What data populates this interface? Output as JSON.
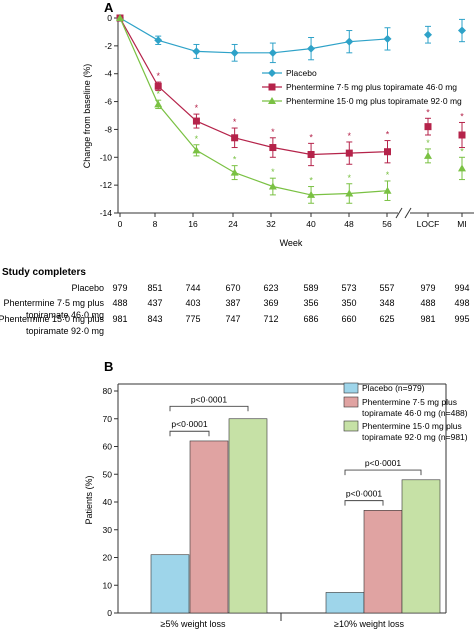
{
  "panel_a": {
    "letter": "A",
    "ylabel": "Change from baseline (%)",
    "xlabel": "Week",
    "yticks": [
      0,
      -2,
      -4,
      -6,
      -8,
      -10,
      -12,
      -14
    ],
    "xticks": [
      "0",
      "8",
      "16",
      "24",
      "32",
      "40",
      "48",
      "56",
      "LOCF",
      "MI"
    ],
    "legend": [
      "Placebo",
      "Phentermine 7·5 mg plus topiramate 46·0 mg",
      "Phentermine 15·0 mg plus topiramate 92·0 mg"
    ],
    "significance_marker": "*"
  },
  "completers": {
    "heading": "Study completers",
    "rows": [
      {
        "label": "Placebo",
        "label2": "",
        "values": [
          "979",
          "851",
          "744",
          "670",
          "623",
          "589",
          "573",
          "557",
          "979",
          "994"
        ]
      },
      {
        "label": "Phentermine 7·5 mg plus",
        "label2": "topiramate 46·0 mg",
        "values": [
          "488",
          "437",
          "403",
          "387",
          "369",
          "356",
          "350",
          "348",
          "488",
          "498"
        ]
      },
      {
        "label": "Phentermine 15·0 mg plus",
        "label2": "topiramate 92·0 mg",
        "values": [
          "981",
          "843",
          "775",
          "747",
          "712",
          "686",
          "660",
          "625",
          "981",
          "995"
        ]
      }
    ]
  },
  "panel_b": {
    "letter": "B",
    "ylabel": "Patients (%)",
    "yticks": [
      0,
      10,
      20,
      30,
      40,
      50,
      60,
      70,
      80
    ],
    "categories": [
      "≥5% weight loss",
      "≥10% weight loss"
    ],
    "legend": [
      {
        "line1": "Placebo (n=979)",
        "line2": ""
      },
      {
        "line1": "Phentermine 7·5 mg plus",
        "line2": "topiramate 46·0 mg (n=488)"
      },
      {
        "line1": "Phentermine 15·0 mg plus",
        "line2": "topiramate 92·0 mg (n=981)"
      }
    ],
    "pvalue_label": "p<0·0001"
  },
  "colors": {
    "placebo": "#2ea2c8",
    "mid": "#b5234a",
    "high": "#7ac143",
    "bar_placebo": "#9ed5ea",
    "bar_mid": "#e0a3a2",
    "bar_high": "#c6e1a6",
    "axis": "#333333"
  },
  "chart_data": [
    {
      "type": "line",
      "xlabel": "Week",
      "ylabel": "Change from baseline (%)",
      "ylim": [
        -14,
        0
      ],
      "x": [
        0,
        8,
        16,
        24,
        32,
        40,
        48,
        56
      ],
      "extra_x": [
        "LOCF",
        "MI"
      ],
      "series": [
        {
          "name": "Placebo",
          "values": [
            0,
            -1.6,
            -2.4,
            -2.5,
            -2.5,
            -2.2,
            -1.7,
            -1.5
          ],
          "errors": [
            0,
            0.3,
            0.5,
            0.6,
            0.7,
            0.8,
            0.8,
            0.8
          ],
          "extra_values": [
            -1.2,
            -0.9
          ],
          "extra_errors": [
            0.6,
            0.8
          ],
          "significant": [
            false,
            false,
            false,
            false,
            false,
            false,
            false,
            false
          ]
        },
        {
          "name": "Phentermine 7·5 mg plus topiramate 46·0 mg",
          "values": [
            0,
            -4.9,
            -7.4,
            -8.6,
            -9.3,
            -9.8,
            -9.7,
            -9.6
          ],
          "errors": [
            0,
            0.3,
            0.5,
            0.7,
            0.7,
            0.8,
            0.8,
            0.8
          ],
          "extra_values": [
            -7.8,
            -8.4
          ],
          "extra_errors": [
            0.6,
            0.9
          ],
          "significant": [
            false,
            true,
            true,
            true,
            true,
            true,
            true,
            true
          ]
        },
        {
          "name": "Phentermine 15·0 mg plus topiramate 92·0 mg",
          "values": [
            0,
            -6.2,
            -9.5,
            -11.1,
            -12.1,
            -12.7,
            -12.6,
            -12.4
          ],
          "errors": [
            0,
            0.3,
            0.4,
            0.5,
            0.6,
            0.6,
            0.7,
            0.7
          ],
          "extra_values": [
            -9.9,
            -10.8
          ],
          "extra_errors": [
            0.5,
            0.8
          ],
          "significant": [
            false,
            true,
            true,
            true,
            true,
            true,
            true,
            true
          ]
        }
      ]
    },
    {
      "type": "bar",
      "ylabel": "Patients (%)",
      "ylim": [
        0,
        80
      ],
      "categories": [
        "≥5% weight loss",
        "≥10% weight loss"
      ],
      "series": [
        {
          "name": "Placebo (n=979)",
          "values": [
            21,
            7.4
          ]
        },
        {
          "name": "Phentermine 7·5 mg plus topiramate 46·0 mg (n=488)",
          "values": [
            62,
            37
          ]
        },
        {
          "name": "Phentermine 15·0 mg plus topiramate 92·0 mg (n=981)",
          "values": [
            70,
            48
          ]
        }
      ],
      "annotations": [
        "p<0·0001",
        "p<0·0001",
        "p<0·0001",
        "p<0·0001"
      ]
    }
  ]
}
